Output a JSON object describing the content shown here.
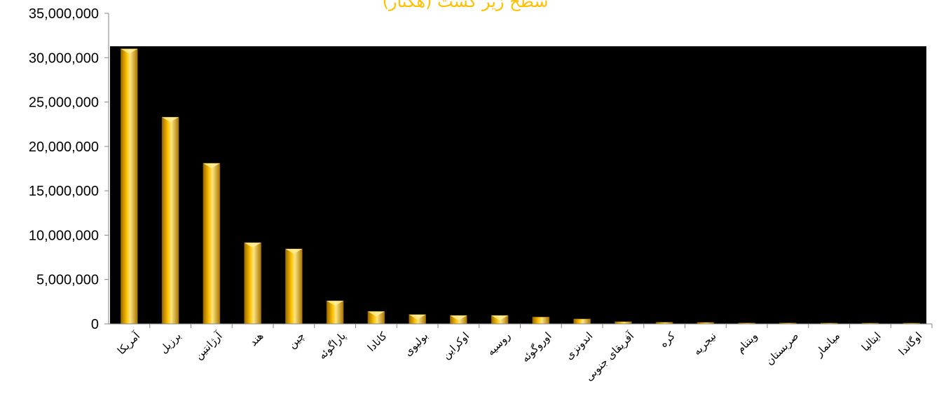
{
  "chart_data": {
    "type": "bar",
    "title": "سطح زیر کشت (هکتار)",
    "xlabel": "",
    "ylabel": "",
    "ylim": [
      0,
      35000000
    ],
    "yticks": [
      "0",
      "5,000,000",
      "10,000,000",
      "15,000,000",
      "20,000,000",
      "25,000,000",
      "30,000,000",
      "35,000,000"
    ],
    "grid": false,
    "legend": "none",
    "plot_background": "#000000",
    "bar_color": "#ffc000",
    "categories": [
      "آمریکا",
      "برزیل",
      "آرژانتین",
      "هند",
      "چین",
      "پاراگوئه",
      "کانادا",
      "بولیوی",
      "اوکراین",
      "روسیه",
      "اوروگوئه",
      "اندونزی",
      "آفریقای جنوبی",
      "کره",
      "نیجریه",
      "ویتنام",
      "صربستان",
      "میانمار",
      "ایتالیا",
      "اوگاندا"
    ],
    "values": [
      31000000,
      23300000,
      18100000,
      9150000,
      8450000,
      2600000,
      1400000,
      1050000,
      950000,
      950000,
      780000,
      560000,
      250000,
      190000,
      170000,
      110000,
      110000,
      100000,
      60000,
      60000
    ]
  }
}
